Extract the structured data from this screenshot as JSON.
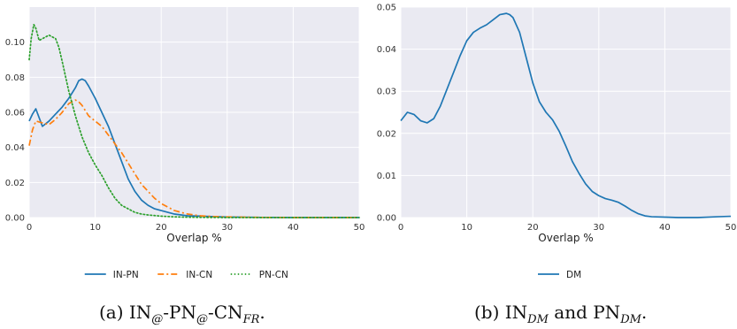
{
  "chart_data": [
    {
      "type": "line",
      "xlabel": "Overlap %",
      "ylabel": "",
      "xlim": [
        0,
        50
      ],
      "ylim": [
        0,
        0.12
      ],
      "xticks": [
        0,
        10,
        20,
        30,
        40,
        50
      ],
      "yticks": [
        0.0,
        0.02,
        0.04,
        0.06,
        0.08,
        0.1
      ],
      "grid": true,
      "legend_position": "bottom",
      "series": [
        {
          "name": "IN-PN",
          "color": "#1f77b4",
          "style": "solid",
          "x": [
            0,
            0.5,
            1,
            2,
            3,
            4,
            5,
            6,
            7,
            7.5,
            8,
            8.5,
            9,
            10,
            11,
            12,
            13,
            14,
            15,
            16,
            17,
            18,
            19,
            20,
            21,
            22,
            24,
            26,
            28,
            30,
            35,
            40,
            45,
            50
          ],
          "y": [
            0.055,
            0.059,
            0.062,
            0.052,
            0.055,
            0.059,
            0.063,
            0.068,
            0.074,
            0.078,
            0.079,
            0.078,
            0.075,
            0.068,
            0.06,
            0.052,
            0.042,
            0.032,
            0.022,
            0.015,
            0.01,
            0.007,
            0.005,
            0.004,
            0.003,
            0.002,
            0.001,
            0.0008,
            0.0005,
            0.0003,
            0.0001,
            0.0,
            0.0,
            0.0
          ]
        },
        {
          "name": "IN-CN",
          "color": "#ff7f0e",
          "style": "dashdot",
          "x": [
            0,
            0.5,
            1,
            2,
            3,
            4,
            5,
            6,
            7,
            7.5,
            8,
            9,
            10,
            11,
            12,
            13,
            14,
            15,
            16,
            17,
            18,
            19,
            20,
            21,
            22,
            23,
            24,
            26,
            28,
            30,
            35,
            40,
            45,
            50
          ],
          "y": [
            0.041,
            0.05,
            0.055,
            0.054,
            0.053,
            0.056,
            0.06,
            0.065,
            0.067,
            0.066,
            0.064,
            0.058,
            0.055,
            0.052,
            0.047,
            0.042,
            0.037,
            0.031,
            0.025,
            0.019,
            0.015,
            0.011,
            0.008,
            0.006,
            0.004,
            0.003,
            0.002,
            0.001,
            0.0006,
            0.0004,
            0.0001,
            0.0,
            0.0,
            0.0
          ]
        },
        {
          "name": "PN-CN",
          "color": "#2ca02c",
          "style": "dotted",
          "x": [
            0,
            0.3,
            0.7,
            1,
            1.5,
            2,
            3,
            4,
            4.5,
            5,
            6,
            7,
            8,
            9,
            10,
            11,
            12,
            13,
            14,
            15,
            16,
            17,
            18,
            20,
            22,
            24,
            26,
            30,
            35,
            40,
            45,
            50
          ],
          "y": [
            0.09,
            0.102,
            0.11,
            0.108,
            0.101,
            0.102,
            0.104,
            0.102,
            0.097,
            0.089,
            0.072,
            0.058,
            0.046,
            0.037,
            0.03,
            0.024,
            0.017,
            0.011,
            0.007,
            0.005,
            0.003,
            0.002,
            0.0015,
            0.0008,
            0.0004,
            0.0002,
            0.0001,
            0.0,
            0.0,
            0.0,
            0.0,
            0.0
          ]
        }
      ]
    },
    {
      "type": "line",
      "xlabel": "Overlap %",
      "ylabel": "",
      "xlim": [
        0,
        50
      ],
      "ylim": [
        0,
        0.05
      ],
      "xticks": [
        0,
        10,
        20,
        30,
        40,
        50
      ],
      "yticks": [
        0.0,
        0.01,
        0.02,
        0.03,
        0.04,
        0.05
      ],
      "grid": true,
      "legend_position": "bottom",
      "series": [
        {
          "name": "DM",
          "color": "#1f77b4",
          "style": "solid",
          "x": [
            0,
            1,
            2,
            3,
            4,
            5,
            6,
            7,
            8,
            9,
            10,
            11,
            12,
            13,
            14,
            15,
            16,
            16.5,
            17,
            18,
            19,
            20,
            21,
            22,
            23,
            24,
            25,
            26,
            27,
            28,
            29,
            30,
            31,
            32,
            33,
            34,
            35,
            36,
            37,
            38,
            40,
            42,
            45,
            48,
            50
          ],
          "y": [
            0.023,
            0.025,
            0.0245,
            0.023,
            0.0225,
            0.0235,
            0.0265,
            0.0305,
            0.0345,
            0.0385,
            0.042,
            0.044,
            0.045,
            0.0458,
            0.047,
            0.0482,
            0.0485,
            0.0482,
            0.0475,
            0.044,
            0.038,
            0.032,
            0.0275,
            0.025,
            0.0232,
            0.0205,
            0.017,
            0.0133,
            0.0105,
            0.008,
            0.0062,
            0.0052,
            0.0045,
            0.0041,
            0.0036,
            0.0027,
            0.0017,
            0.0009,
            0.0004,
            0.0002,
            0.0001,
            0.0,
            0.0,
            0.0002,
            0.0003
          ]
        }
      ]
    }
  ],
  "captions": {
    "a": {
      "prefix": "(a)  IN",
      "sub1": "@",
      "mid1": "-PN",
      "sub2": "@",
      "mid2": "-CN",
      "sub3": "FR",
      "suffix": "."
    },
    "b": {
      "prefix": "(b) IN",
      "sub1": "DM",
      "mid1": " and PN",
      "sub2": "DM",
      "suffix": "."
    }
  }
}
